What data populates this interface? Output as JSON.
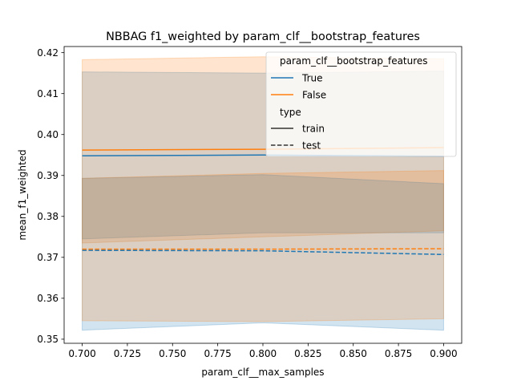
{
  "chart_data": {
    "type": "line",
    "title": "NBBAG f1_weighted by param_clf__bootstrap_features",
    "xlabel": "param_clf__max_samples",
    "ylabel": "mean_f1_weighted",
    "xlim": [
      0.69,
      0.91
    ],
    "ylim": [
      0.349,
      0.4215
    ],
    "x_ticks": [
      0.7,
      0.725,
      0.75,
      0.775,
      0.8,
      0.825,
      0.85,
      0.875,
      0.9
    ],
    "x_tick_labels": [
      "0.700",
      "0.725",
      "0.750",
      "0.775",
      "0.800",
      "0.825",
      "0.850",
      "0.875",
      "0.900"
    ],
    "y_ticks": [
      0.35,
      0.36,
      0.37,
      0.38,
      0.39,
      0.4,
      0.41,
      0.42
    ],
    "y_tick_labels": [
      "0.35",
      "0.36",
      "0.37",
      "0.38",
      "0.39",
      "0.40",
      "0.41",
      "0.42"
    ],
    "grid": false,
    "legend": {
      "placement": "top-right",
      "hue_title": "param_clf__bootstrap_features",
      "style_title": "type",
      "hue_entries": [
        {
          "label": "True",
          "color": "#1f77b4"
        },
        {
          "label": "False",
          "color": "#ff7f0e"
        }
      ],
      "style_entries": [
        {
          "label": "train",
          "dash": "solid"
        },
        {
          "label": "test",
          "dash": "dashed"
        }
      ]
    },
    "x": [
      0.7,
      0.8,
      0.9
    ],
    "series": [
      {
        "hue": "True",
        "type": "train",
        "color": "#1f77b4",
        "dashed": false,
        "values": [
          0.3948,
          0.395,
          0.3947
        ],
        "ci_low": [
          0.3745,
          0.376,
          0.376
        ],
        "ci_high": [
          0.4153,
          0.415,
          0.4155
        ]
      },
      {
        "hue": "False",
        "type": "train",
        "color": "#ff7f0e",
        "dashed": false,
        "values": [
          0.3962,
          0.3964,
          0.3968
        ],
        "ci_low": [
          0.3735,
          0.375,
          0.3765
        ],
        "ci_high": [
          0.4183,
          0.419,
          0.4185
        ]
      },
      {
        "hue": "True",
        "type": "test",
        "color": "#1f77b4",
        "dashed": true,
        "values": [
          0.3717,
          0.3716,
          0.3707
        ],
        "ci_low": [
          0.3522,
          0.354,
          0.3522
        ],
        "ci_high": [
          0.3893,
          0.3902,
          0.388
        ]
      },
      {
        "hue": "False",
        "type": "test",
        "color": "#ff7f0e",
        "dashed": true,
        "values": [
          0.372,
          0.372,
          0.3721
        ],
        "ci_low": [
          0.3545,
          0.3543,
          0.355
        ],
        "ci_high": [
          0.3893,
          0.3905,
          0.3912
        ]
      }
    ]
  }
}
